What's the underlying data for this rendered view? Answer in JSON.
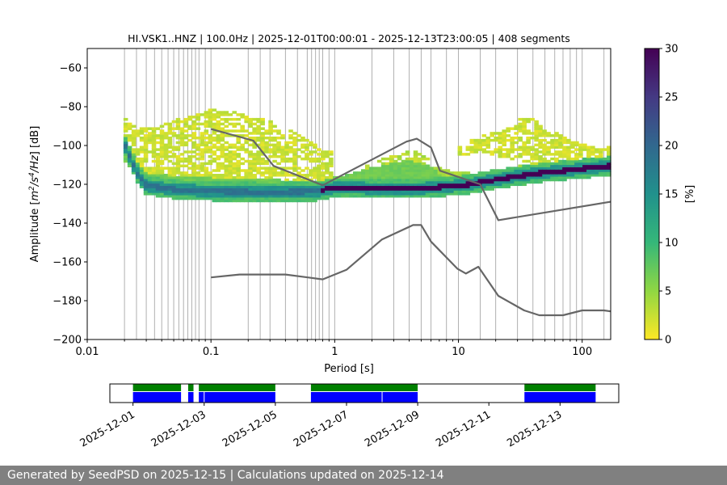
{
  "chart_data": {
    "type": "heatmap",
    "title": "HI.VSK1..HNZ | 100.0Hz | 2025-12-01T00:00:01 - 2025-12-13T23:00:05 | 408 segments",
    "xlabel": "Period [s]",
    "ylabel_parts": [
      "Amplitude [",
      "m",
      "2",
      "/s",
      "4",
      "/Hz",
      "] [dB]"
    ],
    "xscale": "log",
    "xlim": [
      0.01,
      170
    ],
    "ylim": [
      -200,
      -50
    ],
    "x_ticks": [
      0.01,
      0.1,
      1,
      10,
      100
    ],
    "x_tick_labels": [
      "0.01",
      "0.1",
      "1",
      "10",
      "100"
    ],
    "y_ticks": [
      -200,
      -180,
      -160,
      -140,
      -120,
      -100,
      -80,
      -60
    ],
    "y_tick_labels": [
      "−200",
      "−180",
      "−160",
      "−140",
      "−120",
      "−100",
      "−80",
      "−60"
    ],
    "colorbar": {
      "label": "[%]",
      "min": 0,
      "max": 30,
      "ticks": [
        0,
        5,
        10,
        15,
        20,
        25,
        30
      ],
      "tick_labels": [
        "0",
        "5",
        "10",
        "15",
        "20",
        "25",
        "30"
      ],
      "colormap": [
        "#fde725",
        "#90d743",
        "#35b779",
        "#21918c",
        "#31688e",
        "#443983",
        "#440154"
      ]
    },
    "period_gridlines": [
      0.02,
      0.025,
      0.03,
      0.035,
      0.04,
      0.045,
      0.05,
      0.055,
      0.06,
      0.065,
      0.07,
      0.075,
      0.08,
      0.09,
      0.1,
      0.2,
      0.25,
      0.3,
      0.4,
      0.5,
      0.6,
      0.65,
      0.7,
      0.75,
      0.8,
      0.9,
      1,
      2,
      3,
      4,
      5,
      6,
      8,
      10,
      15,
      20,
      30,
      40,
      50,
      60,
      70,
      80,
      90,
      100,
      150
    ],
    "noise_models": [
      {
        "name": "high noise model",
        "color": "#666666",
        "points": [
          [
            0.1,
            -91.5
          ],
          [
            0.22,
            -97.5
          ],
          [
            0.32,
            -110.5
          ],
          [
            0.8,
            -120.5
          ],
          [
            3.8,
            -98
          ],
          [
            4.6,
            -96.5
          ],
          [
            6,
            -101
          ],
          [
            7.1,
            -113
          ],
          [
            15,
            -120
          ],
          [
            21,
            -138.5
          ],
          [
            170,
            -129
          ]
        ]
      },
      {
        "name": "low noise model",
        "color": "#666666",
        "points": [
          [
            0.1,
            -168
          ],
          [
            0.17,
            -166.5
          ],
          [
            0.4,
            -166.5
          ],
          [
            0.8,
            -169
          ],
          [
            1.25,
            -164
          ],
          [
            2.4,
            -148.5
          ],
          [
            4.3,
            -141
          ],
          [
            5.0,
            -141
          ],
          [
            6,
            -149.5
          ],
          [
            9.8,
            -163.5
          ],
          [
            11.5,
            -166
          ],
          [
            14.5,
            -162.5
          ],
          [
            21,
            -177.5
          ],
          [
            34,
            -185
          ],
          [
            45,
            -187.5
          ],
          [
            70,
            -187.5
          ],
          [
            100,
            -185
          ],
          [
            150,
            -185
          ],
          [
            170,
            -185.5
          ]
        ]
      }
    ],
    "mode_curve": [
      [
        0.02,
        -100
      ],
      [
        0.025,
        -114
      ],
      [
        0.03,
        -121
      ],
      [
        0.05,
        -123
      ],
      [
        0.1,
        -124
      ],
      [
        0.3,
        -124.5
      ],
      [
        0.7,
        -124
      ],
      [
        1.0,
        -122
      ],
      [
        2.0,
        -122.5
      ],
      [
        5.0,
        -122.5
      ],
      [
        8.0,
        -121.5
      ],
      [
        12,
        -120.5
      ],
      [
        20,
        -118
      ],
      [
        40,
        -115
      ],
      [
        80,
        -113
      ],
      [
        170,
        -111
      ]
    ],
    "spread_regions": [
      {
        "x": [
          0.02,
          0.025,
          0.03,
          0.05,
          0.07,
          0.1,
          0.15,
          0.3,
          0.6,
          0.8,
          1.0
        ],
        "upper": [
          -86,
          -92,
          -91,
          -87,
          -85,
          -82,
          -83,
          -88,
          -97,
          -103,
          -104
        ],
        "lower": [
          -108,
          -118,
          -126,
          -126,
          -126,
          -126,
          -126,
          -126,
          -127,
          -126,
          -124
        ],
        "density": 1
      },
      {
        "x": [
          0.02,
          0.025,
          0.03,
          0.05,
          0.1,
          0.3,
          0.7,
          1.0,
          2.0,
          3.0,
          4.0,
          6.0,
          8.0
        ],
        "upper": [
          -95,
          -108,
          -115,
          -116,
          -117,
          -118,
          -119,
          -117,
          -112,
          -109,
          -108,
          -111,
          -118
        ],
        "lower": [
          -108,
          -118,
          -124,
          -125,
          -125,
          -125,
          -125,
          -124,
          -123,
          -123,
          -123,
          -123,
          -122
        ],
        "density": 6
      },
      {
        "x": [
          1.8,
          2.5,
          3.5,
          4.5,
          6.0
        ],
        "upper": [
          -111,
          -107,
          -104,
          -103,
          -107
        ],
        "lower": [
          -118,
          -116,
          -115,
          -114,
          -116
        ],
        "density": 2
      },
      {
        "x": [
          5.0,
          6.0,
          8.0,
          10.0,
          15.0,
          20.0,
          30.0,
          50.0,
          80.0,
          120.0,
          170.0
        ],
        "upper": [
          -109,
          -111,
          -113,
          -114,
          -115,
          -113,
          -111,
          -110,
          -109,
          -108,
          -106
        ],
        "lower": [
          -123,
          -123,
          -122,
          -121,
          -120,
          -119,
          -117,
          -116,
          -114,
          -113,
          -112
        ],
        "density": 3
      },
      {
        "x": [
          10,
          15,
          20,
          30,
          40,
          50,
          70,
          100,
          170
        ],
        "upper": [
          -100,
          -96,
          -93,
          -90,
          -88,
          -91,
          -96,
          -100,
          -101
        ],
        "lower": [
          -106,
          -104,
          -106,
          -108,
          -110,
          -112,
          -112,
          -114,
          -113
        ],
        "density": 1
      },
      {
        "x": [
          30,
          40,
          50,
          70,
          100,
          170
        ],
        "upper": [
          -86,
          -86,
          -91,
          -97,
          -105,
          -104
        ],
        "lower": [
          -100,
          -96,
          -100,
          -108,
          -112,
          -112
        ],
        "density": 1
      }
    ],
    "availability": {
      "x_tick_labels": [
        "2025-12-01",
        "2025-12-03",
        "2025-12-05",
        "2025-12-07",
        "2025-12-09",
        "2025-12-11",
        "2025-12-13"
      ],
      "x_tick_days": [
        1,
        3,
        5,
        7,
        9,
        11,
        13
      ],
      "day_range": [
        0.35,
        14.65
      ],
      "segments_days": [
        [
          1.0,
          2.35
        ],
        [
          2.55,
          2.7
        ],
        [
          2.85,
          5.0
        ],
        [
          6.0,
          9.0
        ],
        [
          12.0,
          14.0
        ]
      ],
      "gaps_days": [
        3.0,
        8.0
      ],
      "available_color": "#0000ff",
      "coverage_color": "#008000"
    }
  },
  "footer": {
    "text": "Generated by SeedPSD on 2025-12-15 | Calculations updated on 2025-12-14"
  }
}
